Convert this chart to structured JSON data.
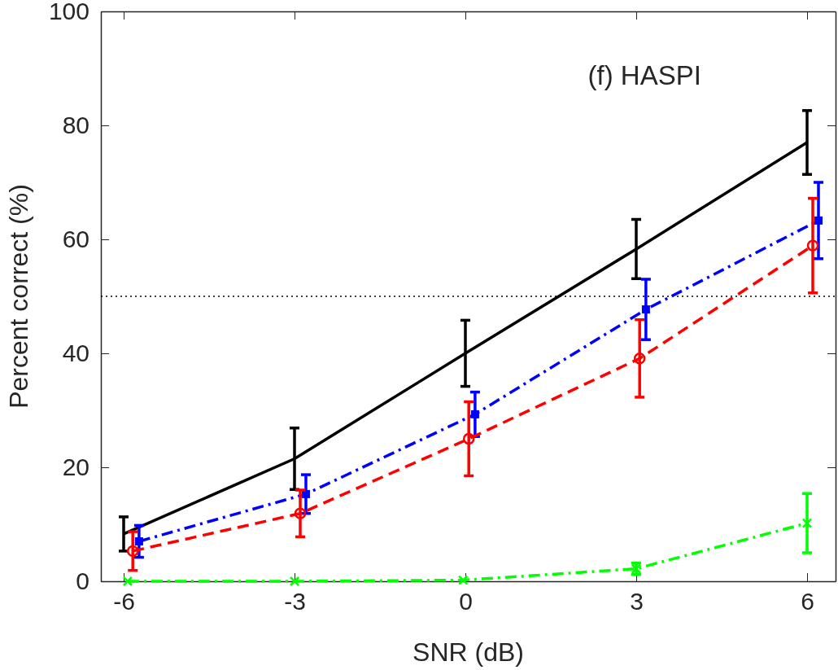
{
  "chart_data": {
    "type": "line",
    "xlabel": "SNR (dB)",
    "ylabel": "Percent correct (%)",
    "annotations": [
      "(f) HASPI"
    ],
    "xlim": [
      -6.4,
      6.5
    ],
    "xticks": [
      -6,
      -3,
      0,
      3,
      6
    ],
    "ylim": [
      0,
      100
    ],
    "yticks": [
      0,
      20,
      40,
      60,
      80,
      100
    ],
    "grid": false,
    "ref_lines": [
      {
        "axis": "y",
        "value": 50,
        "color": "#000000",
        "line_style": "dotted"
      }
    ],
    "series": [
      {
        "color": "#000000",
        "marker": "none",
        "line_style": "solid",
        "x": [
          -6,
          -3,
          0,
          3,
          6
        ],
        "values": [
          8.3,
          21.5,
          40,
          58.3,
          77
        ],
        "errors": [
          3,
          5.4,
          5.8,
          5.2,
          5.6
        ]
      },
      {
        "color": "#0000ff",
        "marker": "square",
        "line_style": "dashdot",
        "x": [
          -5.73,
          -2.8,
          0.17,
          3.17,
          6.2
        ],
        "values": [
          7,
          15.3,
          29.3,
          47.7,
          63.3
        ],
        "errors": [
          2.8,
          3.4,
          3.9,
          5.3,
          6.7
        ]
      },
      {
        "color": "#ff0000",
        "marker": "circle",
        "line_style": "dashed",
        "x": [
          -5.84,
          -2.9,
          0.06,
          3.06,
          6.1
        ],
        "values": [
          5.3,
          11.9,
          25,
          39.1,
          58.9
        ],
        "errors": [
          3.4,
          4.1,
          6.5,
          6.8,
          8.3
        ]
      },
      {
        "color": "#00ff00",
        "marker": "cross",
        "line_style": "dashdot",
        "x": [
          -5.93,
          -3,
          -0.04,
          3,
          6
        ],
        "values": [
          0,
          0,
          0.2,
          2.2,
          10.2
        ],
        "errors": [
          null,
          null,
          null,
          1,
          5.2
        ]
      }
    ]
  }
}
